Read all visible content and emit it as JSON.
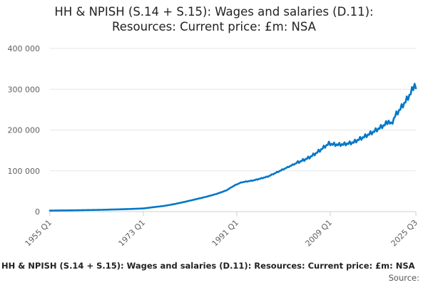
{
  "chart_data": {
    "type": "line",
    "title_line1": "HH & NPISH (S.14 + S.15): Wages and salaries (D.11):",
    "title_line2": "Resources: Current price: £m: NSA",
    "xlabel": "",
    "ylabel": "",
    "ylim": [
      0,
      400000
    ],
    "yticks": [
      "0",
      "100 000",
      "200 000",
      "300 000",
      "400 000"
    ],
    "ytick_values": [
      0,
      100000,
      200000,
      300000,
      400000
    ],
    "xticks": [
      "1955 Q1",
      "1973 Q1",
      "1991 Q1",
      "2009 Q1",
      "2025 Q3"
    ],
    "xtick_values": [
      1955.0,
      1973.0,
      1991.0,
      2009.0,
      2025.5
    ],
    "grid": true,
    "series": [
      {
        "color": "#0077c8",
        "points": [
          [
            1955.0,
            2500
          ],
          [
            1960.0,
            3300
          ],
          [
            1965.0,
            4400
          ],
          [
            1970.0,
            6200
          ],
          [
            1973.0,
            7800
          ],
          [
            1975.0,
            11000
          ],
          [
            1977.0,
            14000
          ],
          [
            1979.0,
            18500
          ],
          [
            1981.0,
            24000
          ],
          [
            1983.0,
            30000
          ],
          [
            1985.0,
            36000
          ],
          [
            1987.0,
            43000
          ],
          [
            1989.0,
            52000
          ],
          [
            1990.0,
            60000
          ],
          [
            1991.0,
            67000
          ],
          [
            1992.0,
            72000
          ],
          [
            1993.0,
            74000
          ],
          [
            1994.0,
            76000
          ],
          [
            1995.0,
            79000
          ],
          [
            1997.0,
            86000
          ],
          [
            1998.0,
            92000
          ],
          [
            1999.0,
            98000
          ],
          [
            2000.0,
            104000
          ],
          [
            2001.0,
            110000
          ],
          [
            2002.0,
            116000
          ],
          [
            2003.0,
            122000
          ],
          [
            2004.0,
            127000
          ],
          [
            2005.0,
            133000
          ],
          [
            2006.0,
            141000
          ],
          [
            2007.0,
            150000
          ],
          [
            2008.0,
            160000
          ],
          [
            2008.75,
            167000
          ],
          [
            2009.5,
            165000
          ],
          [
            2010.5,
            164000
          ],
          [
            2011.5,
            165000
          ],
          [
            2012.5,
            167000
          ],
          [
            2013.5,
            170000
          ],
          [
            2014.5,
            177000
          ],
          [
            2015.5,
            183000
          ],
          [
            2016.5,
            190000
          ],
          [
            2017.5,
            197000
          ],
          [
            2018.5,
            205000
          ],
          [
            2019.5,
            213000
          ],
          [
            2020.25,
            222000
          ],
          [
            2020.75,
            213000
          ],
          [
            2021.5,
            235000
          ],
          [
            2022.5,
            252000
          ],
          [
            2023.5,
            270000
          ],
          [
            2024.5,
            290000
          ],
          [
            2025.25,
            312000
          ],
          [
            2025.5,
            305000
          ]
        ]
      }
    ]
  },
  "footer": {
    "title": "HH & NPISH (S.14 + S.15): Wages and salaries (D.11): Resources: Current price: £m: NSA",
    "source": "Source:"
  }
}
